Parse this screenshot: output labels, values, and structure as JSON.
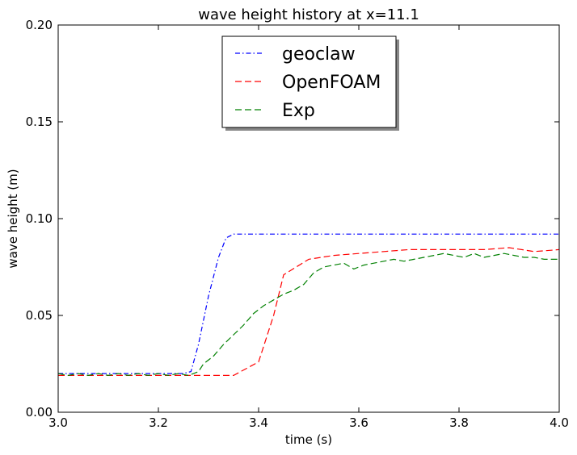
{
  "chart_data": {
    "type": "line",
    "title": "wave height history at x=11.1",
    "xlabel": "time (s)",
    "ylabel": "wave height (m)",
    "xlim": [
      3.0,
      4.0
    ],
    "ylim": [
      0.0,
      0.2
    ],
    "x_ticks": [
      "3.0",
      "3.2",
      "3.4",
      "3.6",
      "3.8",
      "4.0"
    ],
    "y_ticks": [
      "0.00",
      "0.05",
      "0.10",
      "0.15",
      "0.20"
    ],
    "grid": false,
    "legend_position": "top-center",
    "series": [
      {
        "name": "geoclaw",
        "color": "#0000ff",
        "style": "dashdot",
        "x": [
          3.0,
          3.05,
          3.1,
          3.15,
          3.2,
          3.25,
          3.265,
          3.28,
          3.3,
          3.32,
          3.335,
          3.35,
          3.4,
          3.5,
          3.6,
          3.7,
          3.8,
          3.9,
          4.0
        ],
        "y": [
          0.02,
          0.02,
          0.02,
          0.02,
          0.02,
          0.02,
          0.021,
          0.035,
          0.06,
          0.08,
          0.09,
          0.092,
          0.092,
          0.092,
          0.092,
          0.092,
          0.092,
          0.092,
          0.092
        ]
      },
      {
        "name": "OpenFOAM",
        "color": "#ff0000",
        "style": "dashed",
        "x": [
          3.0,
          3.1,
          3.2,
          3.3,
          3.35,
          3.4,
          3.43,
          3.45,
          3.5,
          3.55,
          3.6,
          3.65,
          3.7,
          3.75,
          3.8,
          3.85,
          3.9,
          3.95,
          4.0
        ],
        "y": [
          0.019,
          0.019,
          0.019,
          0.019,
          0.019,
          0.026,
          0.05,
          0.071,
          0.079,
          0.081,
          0.082,
          0.083,
          0.084,
          0.084,
          0.084,
          0.084,
          0.085,
          0.083,
          0.084
        ]
      },
      {
        "name": "Exp",
        "color": "#008000",
        "style": "dashed",
        "x": [
          3.0,
          3.02,
          3.04,
          3.06,
          3.08,
          3.1,
          3.12,
          3.14,
          3.16,
          3.18,
          3.2,
          3.22,
          3.24,
          3.26,
          3.28,
          3.29,
          3.31,
          3.33,
          3.35,
          3.37,
          3.39,
          3.41,
          3.43,
          3.45,
          3.47,
          3.49,
          3.51,
          3.53,
          3.55,
          3.57,
          3.59,
          3.61,
          3.63,
          3.65,
          3.67,
          3.69,
          3.71,
          3.73,
          3.75,
          3.77,
          3.79,
          3.81,
          3.83,
          3.85,
          3.87,
          3.89,
          3.91,
          3.93,
          3.95,
          3.97,
          4.0
        ],
        "y": [
          0.02,
          0.019,
          0.02,
          0.019,
          0.02,
          0.019,
          0.02,
          0.019,
          0.02,
          0.019,
          0.02,
          0.019,
          0.02,
          0.019,
          0.021,
          0.025,
          0.029,
          0.035,
          0.04,
          0.045,
          0.051,
          0.055,
          0.058,
          0.061,
          0.063,
          0.066,
          0.072,
          0.075,
          0.076,
          0.077,
          0.074,
          0.076,
          0.077,
          0.078,
          0.079,
          0.078,
          0.079,
          0.08,
          0.081,
          0.082,
          0.081,
          0.08,
          0.082,
          0.08,
          0.081,
          0.082,
          0.081,
          0.08,
          0.08,
          0.079,
          0.079
        ]
      }
    ]
  }
}
